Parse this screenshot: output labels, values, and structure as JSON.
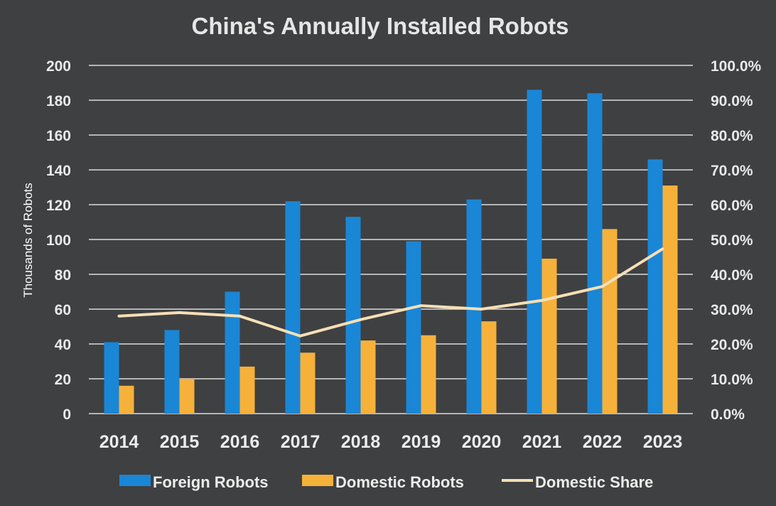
{
  "chart_data": {
    "type": "bar",
    "title": "China's Annually Installed Robots",
    "ylabel": "Thousands of Robots",
    "y2label": "",
    "categories": [
      "2014",
      "2015",
      "2016",
      "2017",
      "2018",
      "2019",
      "2020",
      "2021",
      "2022",
      "2023"
    ],
    "ylim": [
      0,
      200
    ],
    "yticks": [
      "0",
      "20",
      "40",
      "60",
      "80",
      "100",
      "120",
      "140",
      "160",
      "180",
      "200"
    ],
    "y2lim": [
      0,
      100
    ],
    "y2ticks": [
      "0.0%",
      "10.0%",
      "20.0%",
      "30.0%",
      "40.0%",
      "50.0%",
      "60.0%",
      "70.0%",
      "80.0%",
      "90.0%",
      "100.0%"
    ],
    "grid": true,
    "legend_position": "bottom",
    "series": [
      {
        "name": "Foreign Robots",
        "type": "bar",
        "axis": "left",
        "color": "#1a86d6",
        "values": [
          41,
          48,
          70,
          122,
          113,
          99,
          123,
          186,
          184,
          146
        ]
      },
      {
        "name": "Domestic Robots",
        "type": "bar",
        "axis": "left",
        "color": "#f6b13a",
        "values": [
          16,
          20,
          27,
          35,
          42,
          45,
          53,
          89,
          106,
          131
        ]
      },
      {
        "name": "Domestic Share",
        "type": "line",
        "axis": "right",
        "unit": "%",
        "color": "#f6dfb6",
        "values": [
          28.0,
          29.0,
          28.0,
          22.3,
          27.0,
          31.0,
          30.0,
          32.5,
          36.5,
          47.3
        ]
      }
    ]
  }
}
